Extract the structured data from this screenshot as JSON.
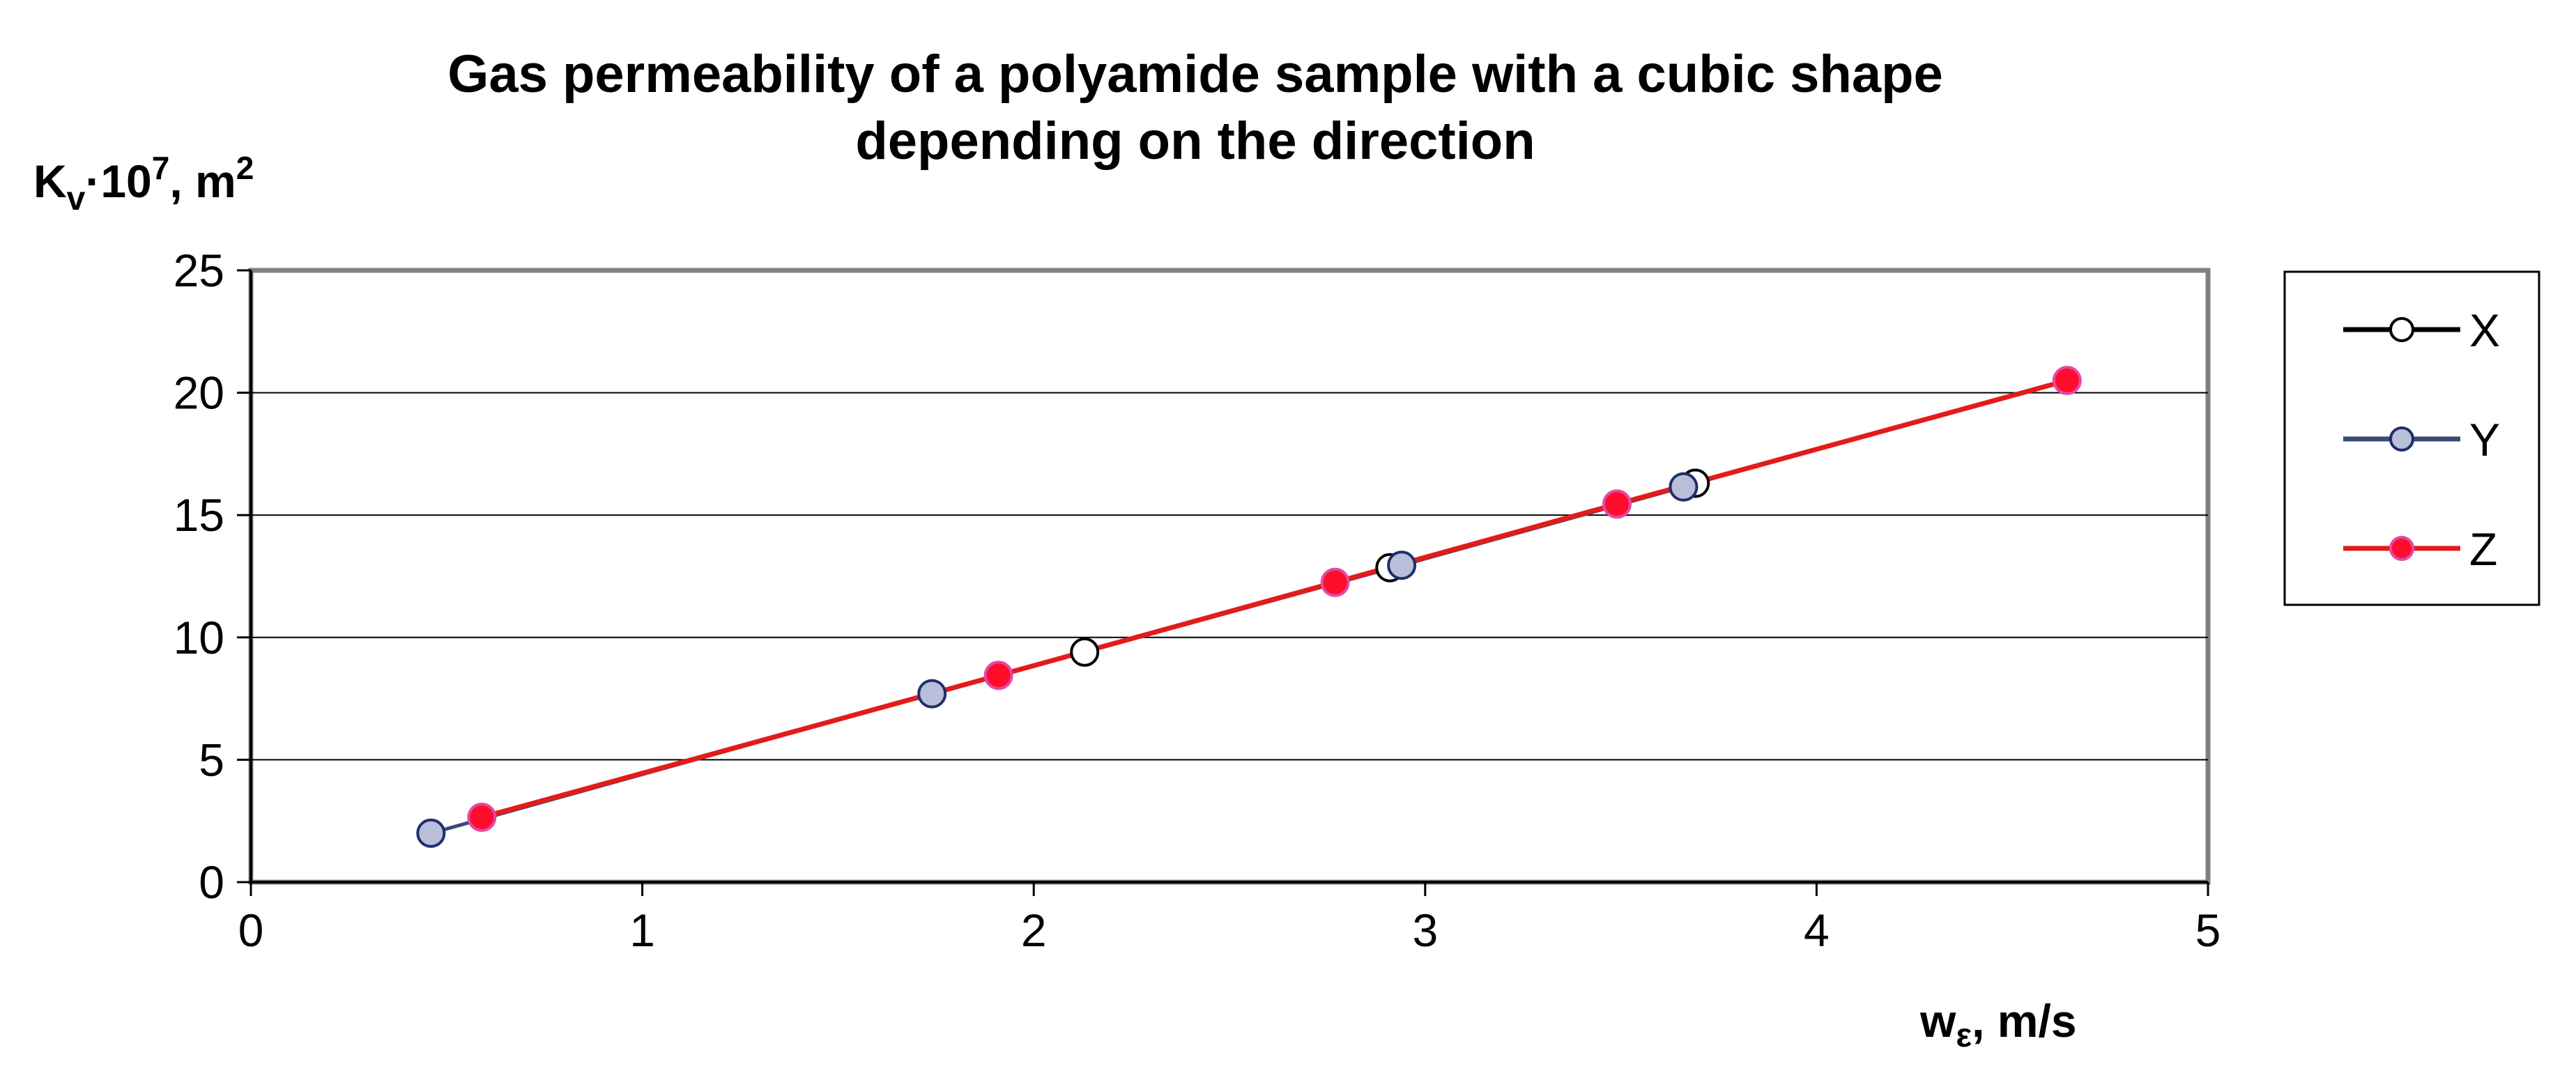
{
  "chart_data": {
    "type": "line",
    "title_line1": "Gas permeability of a polyamide sample with a cubic shape",
    "title_line2": "depending on the direction",
    "ylabel": {
      "base": "K",
      "sub": "v",
      "mid": "·10",
      "sup1": "7",
      "tail": ", m",
      "sup2": "2"
    },
    "xlabel": {
      "base": "w",
      "sub": "ε",
      "tail": ", m/s"
    },
    "xlim": [
      0,
      5
    ],
    "ylim": [
      0,
      25
    ],
    "x_ticks": [
      "0",
      "1",
      "2",
      "3",
      "4",
      "5"
    ],
    "y_ticks": [
      "0",
      "5",
      "10",
      "15",
      "20",
      "25"
    ],
    "grid": "horizontal major gridlines",
    "legend_position": "right",
    "series": [
      {
        "name": "X",
        "line_color": "#000000",
        "marker_fill": "#ffffff",
        "marker_edge": "#000000",
        "points": [
          [
            2.13,
            9.4
          ],
          [
            2.91,
            12.85
          ],
          [
            3.69,
            16.3
          ]
        ]
      },
      {
        "name": "Y",
        "line_color": "#3b4a78",
        "marker_fill": "#b8bfd9",
        "marker_edge": "#1f2f6b",
        "points": [
          [
            0.46,
            2.0
          ],
          [
            1.74,
            7.7
          ],
          [
            2.94,
            12.95
          ],
          [
            3.66,
            16.15
          ]
        ]
      },
      {
        "name": "Z",
        "line_color": "#e31b1b",
        "marker_fill": "#ff0d2a",
        "marker_edge": "#e24aa8",
        "points": [
          [
            0.59,
            2.65
          ],
          [
            1.91,
            8.45
          ],
          [
            2.77,
            12.25
          ],
          [
            3.49,
            15.45
          ],
          [
            4.64,
            20.5
          ]
        ]
      }
    ]
  }
}
